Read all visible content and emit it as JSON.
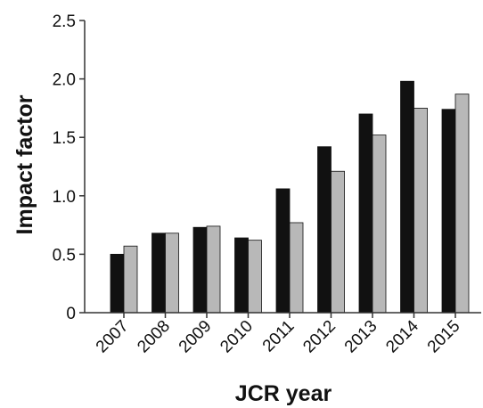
{
  "chart_data": {
    "type": "bar",
    "xlabel": "JCR year",
    "ylabel": "Impact factor",
    "ylim": [
      0,
      2.5
    ],
    "yticks": [
      "0",
      "0.5",
      "1.0",
      "1.5",
      "2.0",
      "2.5"
    ],
    "categories": [
      "2007",
      "2008",
      "2009",
      "2010",
      "2011",
      "2012",
      "2013",
      "2014",
      "2015"
    ],
    "series": [
      {
        "color": "#111111",
        "values": [
          0.5,
          0.68,
          0.73,
          0.64,
          1.06,
          1.42,
          1.7,
          1.98,
          1.74
        ]
      },
      {
        "color": "#b8b8b8",
        "values": [
          0.57,
          0.68,
          0.74,
          0.62,
          0.77,
          1.21,
          1.52,
          1.75,
          1.87
        ]
      }
    ],
    "grid": false,
    "legend": "none"
  }
}
